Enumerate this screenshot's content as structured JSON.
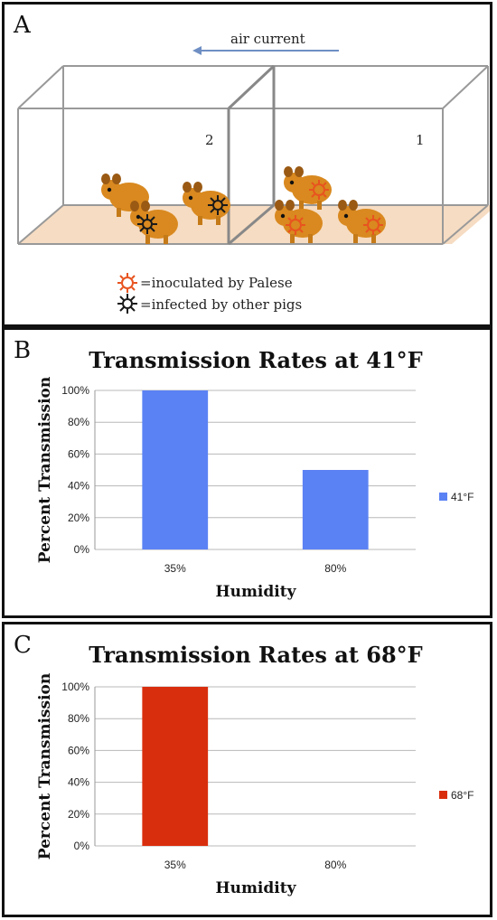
{
  "panel_a": {
    "letter": "A",
    "air_label": "air current",
    "chamber_2": "2",
    "chamber_1": "1",
    "legend_inoculated": "=inoculated by Palese",
    "legend_infected": "=infected by other pigs",
    "colors": {
      "pig": "#d9891f",
      "inoculated": "#e8531f",
      "infected": "#1a1a1a",
      "floor": "#f6dcc2",
      "arrow": "#6f8fc4"
    }
  },
  "chart_data": [
    {
      "type": "bar",
      "letter": "B",
      "title": "Transmission Rates at 41°F",
      "xlabel": "Humidity",
      "ylabel": "Percent Transmission",
      "categories": [
        "35%",
        "80%"
      ],
      "yticks": [
        "0%",
        "20%",
        "40%",
        "60%",
        "80%",
        "100%"
      ],
      "ylim": [
        0,
        100
      ],
      "series": [
        {
          "name": "41°F",
          "values": [
            100,
            50
          ],
          "color": "#5b82f4"
        }
      ],
      "grid": true,
      "legend": "right"
    },
    {
      "type": "bar",
      "letter": "C",
      "title": "Transmission Rates at 68°F",
      "xlabel": "Humidity",
      "ylabel": "Percent Transmission",
      "categories": [
        "35%",
        "80%"
      ],
      "yticks": [
        "0%",
        "20%",
        "40%",
        "60%",
        "80%",
        "100%"
      ],
      "ylim": [
        0,
        100
      ],
      "series": [
        {
          "name": "68°F",
          "values": [
            100,
            0
          ],
          "color": "#d92e0d"
        }
      ],
      "grid": true,
      "legend": "right"
    }
  ]
}
